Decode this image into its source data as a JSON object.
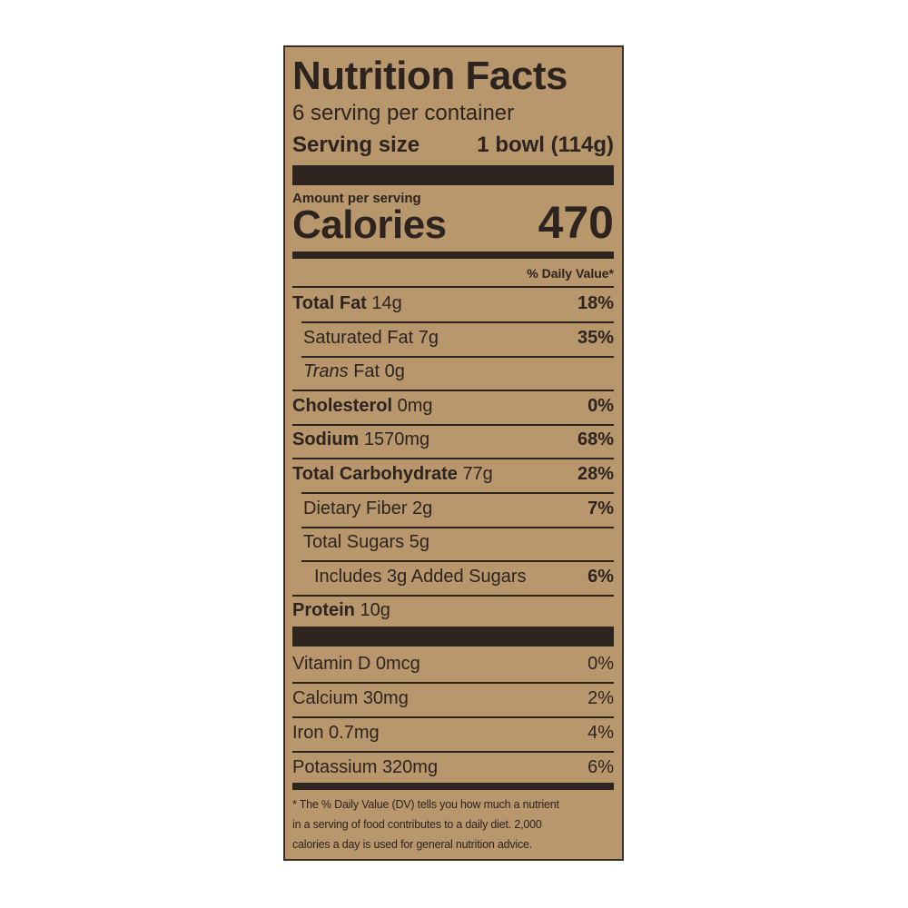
{
  "label": {
    "title": "Nutrition Facts",
    "servings": "6 serving per container",
    "serving_size_label": "Serving size",
    "serving_size_value": "1 bowl (114g)",
    "amount_per_serving": "Amount per serving",
    "calories_label": "Calories",
    "calories_value": 470,
    "dv_header": "% Daily Value*",
    "rows": [
      {
        "name": "Total Fat",
        "amount": "14g",
        "dv": "18%",
        "bold": true,
        "indent": 0
      },
      {
        "name": "Saturated Fat",
        "amount": "7g",
        "dv": "35%",
        "bold": false,
        "indent": 1
      },
      {
        "name_italic": "Trans",
        "name": "Fat",
        "amount": "0g",
        "bold": false,
        "indent": 1
      },
      {
        "name": "Cholesterol",
        "amount": "0mg",
        "dv": "0%",
        "bold": true,
        "indent": 0
      },
      {
        "name": "Sodium",
        "amount": "1570mg",
        "dv": "68%",
        "bold": true,
        "indent": 0
      },
      {
        "name": "Total Carbohydrate",
        "amount": "77g",
        "dv": "28%",
        "bold": true,
        "indent": 0
      },
      {
        "name": "Dietary Fiber",
        "amount": "2g",
        "dv": "7%",
        "bold": false,
        "indent": 1
      },
      {
        "name": "Total Sugars",
        "amount": "5g",
        "bold": false,
        "indent": 1
      },
      {
        "name": "Includes 3g Added Sugars",
        "dv": "6%",
        "bold": false,
        "indent": 2
      },
      {
        "name": "Protein",
        "amount": "10g",
        "bold": true,
        "indent": 0
      }
    ],
    "vitamins": [
      {
        "name": "Vitamin D",
        "amount": "0mcg",
        "dv": "0%"
      },
      {
        "name": "Calcium",
        "amount": "30mg",
        "dv": "2%"
      },
      {
        "name": "Iron",
        "amount": "0.7mg",
        "dv": "4%"
      },
      {
        "name": "Potassium",
        "amount": "320mg",
        "dv": "6%"
      }
    ],
    "footnote": [
      "* The % Daily Value (DV) tells you how much a nutrient",
      "in a serving of food contributes to a daily diet. 2,000",
      "calories a day is used for general nutrition advice."
    ]
  }
}
